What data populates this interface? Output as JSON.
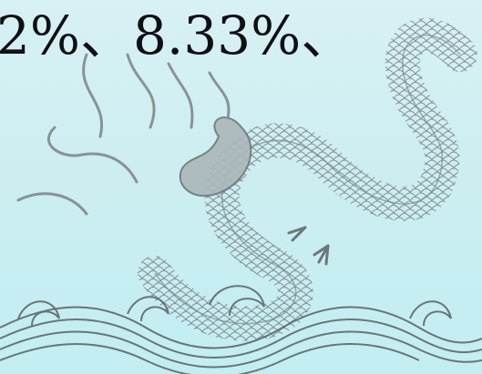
{
  "headline": {
    "text": "2%、8.33%、"
  },
  "artwork": {
    "icon": "chinese-dragon-over-waves",
    "ink_color": "#8a9296",
    "wave_color": "#5f686c"
  }
}
